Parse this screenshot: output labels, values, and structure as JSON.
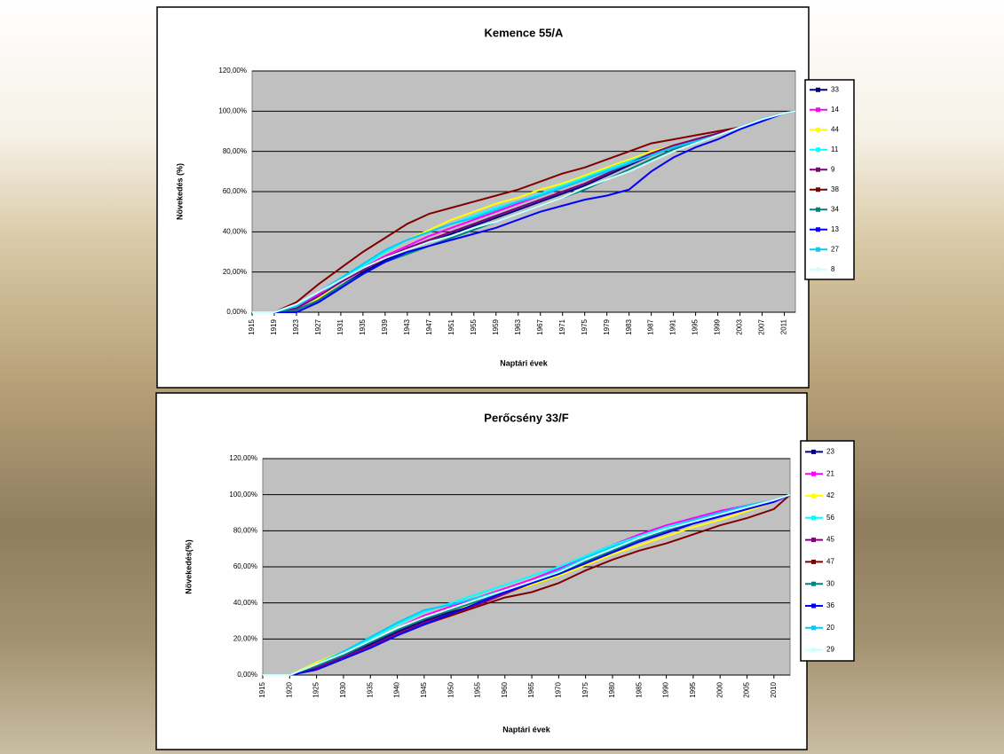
{
  "chart_data": [
    {
      "type": "line",
      "title": "Kemence 55/A",
      "x_label": "Naptári évek",
      "y_label": "Növekedés (%)",
      "x": [
        1915,
        1919,
        1923,
        1927,
        1931,
        1935,
        1939,
        1943,
        1947,
        1951,
        1955,
        1959,
        1963,
        1967,
        1971,
        1975,
        1979,
        1983,
        1987,
        1991,
        1995,
        1999,
        2003,
        2007,
        2011,
        2013
      ],
      "xlim": [
        1915,
        2013
      ],
      "xticks": [
        1915,
        1919,
        1923,
        1927,
        1931,
        1935,
        1939,
        1943,
        1947,
        1951,
        1955,
        1959,
        1963,
        1967,
        1971,
        1975,
        1979,
        1983,
        1987,
        1991,
        1995,
        1999,
        2003,
        2007,
        2011
      ],
      "ylim": [
        0,
        120
      ],
      "yticks": [
        {
          "value": 0,
          "label": "0,00%"
        },
        {
          "value": 20,
          "label": "20,00%"
        },
        {
          "value": 40,
          "label": "40,00%"
        },
        {
          "value": 60,
          "label": "60,00%"
        },
        {
          "value": 80,
          "label": "80,00%"
        },
        {
          "value": 100,
          "label": "100,00%"
        },
        {
          "value": 120,
          "label": "120,00%"
        }
      ],
      "grid": true,
      "plot_background": "#c0c0c0",
      "legend": "right",
      "series": [
        {
          "name": "33",
          "color": "#000080",
          "values": [
            0,
            0,
            1,
            6,
            13,
            20,
            26,
            31,
            35,
            39,
            43,
            47,
            51,
            55,
            59,
            63,
            68,
            73,
            78,
            82,
            86,
            89,
            92,
            96,
            99,
            100
          ]
        },
        {
          "name": "14",
          "color": "#ff00ff",
          "values": [
            0,
            0,
            3,
            9,
            16,
            22,
            28,
            33,
            38,
            42,
            46,
            50,
            54,
            58,
            62,
            66,
            71,
            76,
            80,
            83,
            86,
            89,
            92,
            96,
            99,
            100
          ]
        },
        {
          "name": "44",
          "color": "#ffff00",
          "values": [
            0,
            0,
            0,
            7,
            15,
            23,
            30,
            36,
            41,
            46,
            50,
            54,
            57,
            61,
            64,
            68,
            72,
            76,
            80,
            83,
            86,
            89,
            92,
            96,
            99,
            100
          ]
        },
        {
          "name": "11",
          "color": "#00ffff",
          "values": [
            0,
            0,
            2,
            8,
            16,
            23,
            30,
            36,
            40,
            44,
            48,
            52,
            55,
            59,
            63,
            67,
            71,
            75,
            79,
            82,
            85,
            88,
            92,
            96,
            99,
            100
          ]
        },
        {
          "name": "9",
          "color": "#800080",
          "values": [
            0,
            0,
            2,
            8,
            15,
            21,
            27,
            32,
            36,
            40,
            44,
            48,
            52,
            56,
            60,
            64,
            69,
            74,
            79,
            83,
            86,
            89,
            92,
            96,
            99,
            100
          ]
        },
        {
          "name": "38",
          "color": "#800000",
          "values": [
            0,
            0,
            5,
            14,
            22,
            30,
            37,
            44,
            49,
            52,
            55,
            58,
            61,
            65,
            69,
            72,
            76,
            80,
            84,
            86,
            88,
            90,
            92,
            96,
            99,
            100
          ]
        },
        {
          "name": "34",
          "color": "#008080",
          "values": [
            0,
            0,
            1,
            6,
            13,
            19,
            25,
            29,
            33,
            37,
            41,
            45,
            49,
            53,
            57,
            61,
            66,
            71,
            76,
            81,
            85,
            88,
            92,
            96,
            99,
            100
          ]
        },
        {
          "name": "13",
          "color": "#0000ff",
          "values": [
            0,
            0,
            0,
            5,
            12,
            19,
            25,
            30,
            33,
            36,
            39,
            42,
            46,
            50,
            53,
            56,
            58,
            61,
            70,
            77,
            82,
            86,
            91,
            95,
            99,
            100
          ]
        },
        {
          "name": "27",
          "color": "#00ccff",
          "values": [
            0,
            0,
            3,
            10,
            17,
            24,
            31,
            36,
            40,
            44,
            47,
            51,
            55,
            58,
            62,
            66,
            70,
            74,
            78,
            82,
            85,
            88,
            92,
            96,
            99,
            100
          ]
        },
        {
          "name": "8",
          "color": "#ccffff",
          "values": [
            0,
            0,
            4,
            10,
            16,
            22,
            27,
            31,
            35,
            38,
            42,
            45,
            49,
            53,
            57,
            62,
            66,
            70,
            75,
            80,
            84,
            88,
            92,
            96,
            99,
            100
          ]
        }
      ]
    },
    {
      "type": "line",
      "title": "Perőcsény 33/F",
      "x_label": "Naptári évek",
      "y_label": "Növekedés(%)",
      "x": [
        1915,
        1920,
        1925,
        1930,
        1935,
        1940,
        1945,
        1950,
        1955,
        1960,
        1965,
        1970,
        1975,
        1980,
        1985,
        1990,
        1995,
        2000,
        2005,
        2010,
        2013
      ],
      "xlim": [
        1915,
        2013
      ],
      "xticks": [
        1915,
        1920,
        1925,
        1930,
        1935,
        1940,
        1945,
        1950,
        1955,
        1960,
        1965,
        1970,
        1975,
        1980,
        1985,
        1990,
        1995,
        2000,
        2005,
        2010
      ],
      "ylim": [
        0,
        120
      ],
      "yticks": [
        {
          "value": 0,
          "label": "0,00%"
        },
        {
          "value": 20,
          "label": "20,00%"
        },
        {
          "value": 40,
          "label": "40,00%"
        },
        {
          "value": 60,
          "label": "60,00%"
        },
        {
          "value": 80,
          "label": "80,00%"
        },
        {
          "value": 100,
          "label": "100,00%"
        },
        {
          "value": 120,
          "label": "120,00%"
        }
      ],
      "grid": true,
      "plot_background": "#c0c0c0",
      "legend": "right",
      "series": [
        {
          "name": "23",
          "color": "#000080",
          "values": [
            0,
            0,
            4,
            11,
            17,
            24,
            30,
            35,
            40,
            45,
            50,
            55,
            62,
            68,
            74,
            79,
            84,
            88,
            92,
            97,
            100
          ]
        },
        {
          "name": "21",
          "color": "#ff00ff",
          "values": [
            0,
            0,
            5,
            12,
            19,
            26,
            33,
            38,
            43,
            48,
            53,
            59,
            66,
            72,
            78,
            83,
            87,
            91,
            94,
            97,
            100
          ]
        },
        {
          "name": "42",
          "color": "#ffff00",
          "values": [
            0,
            0,
            7,
            13,
            19,
            26,
            32,
            36,
            40,
            45,
            50,
            55,
            61,
            67,
            72,
            77,
            82,
            86,
            91,
            96,
            100
          ]
        },
        {
          "name": "56",
          "color": "#00ffff",
          "values": [
            0,
            0,
            6,
            13,
            20,
            28,
            35,
            40,
            45,
            50,
            55,
            60,
            66,
            72,
            77,
            82,
            86,
            90,
            93,
            97,
            100
          ]
        },
        {
          "name": "45",
          "color": "#800080",
          "values": [
            0,
            0,
            4,
            10,
            16,
            23,
            29,
            34,
            39,
            45,
            51,
            56,
            62,
            68,
            74,
            79,
            84,
            88,
            92,
            96,
            100
          ]
        },
        {
          "name": "47",
          "color": "#800000",
          "values": [
            0,
            0,
            3,
            9,
            15,
            22,
            28,
            33,
            38,
            43,
            46,
            51,
            58,
            64,
            69,
            73,
            78,
            83,
            87,
            92,
            100
          ]
        },
        {
          "name": "30",
          "color": "#008080",
          "values": [
            0,
            0,
            5,
            11,
            18,
            25,
            31,
            36,
            41,
            46,
            51,
            56,
            63,
            69,
            75,
            80,
            85,
            89,
            93,
            97,
            100
          ]
        },
        {
          "name": "36",
          "color": "#0000ff",
          "values": [
            0,
            0,
            3,
            9,
            15,
            22,
            28,
            34,
            40,
            46,
            51,
            56,
            62,
            68,
            74,
            79,
            84,
            88,
            92,
            96,
            100
          ]
        },
        {
          "name": "20",
          "color": "#00ccff",
          "values": [
            0,
            0,
            6,
            13,
            21,
            29,
            36,
            39,
            43,
            47,
            52,
            58,
            65,
            71,
            76,
            81,
            86,
            90,
            94,
            97,
            100
          ]
        },
        {
          "name": "29",
          "color": "#ccffff",
          "values": [
            0,
            0,
            6,
            12,
            19,
            26,
            32,
            37,
            42,
            47,
            52,
            57,
            64,
            70,
            76,
            81,
            85,
            89,
            93,
            97,
            100
          ]
        }
      ]
    }
  ]
}
